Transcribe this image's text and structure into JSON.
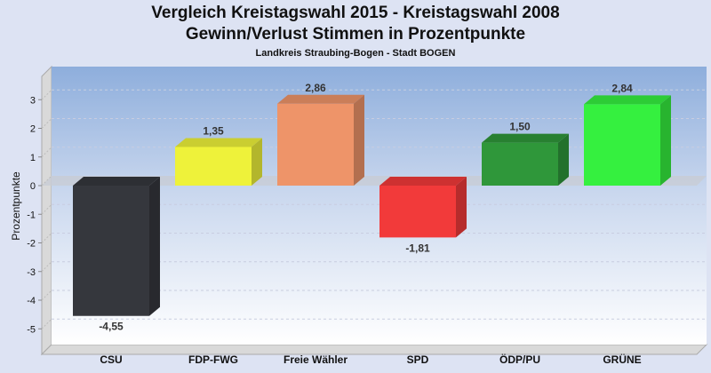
{
  "chart_data": {
    "type": "bar",
    "title": "Vergleich Kreistagswahl 2015 - Kreistagswahl 2008",
    "subtitle": "Gewinn/Verlust Stimmen in Prozentpunkte",
    "subsubtitle": "Landkreis Straubing-Bogen - Stadt BOGEN",
    "xlabel": "",
    "ylabel": "Prozentpunkte",
    "ylim": [
      -5.5,
      3.8
    ],
    "yticks": [
      3,
      2,
      1,
      0,
      -1,
      -2,
      -3,
      -4,
      -5
    ],
    "grid": true,
    "categories": [
      "CSU",
      "FDP-FWG",
      "Freie Wähler",
      "SPD",
      "ÖDP/PU",
      "GRÜNE"
    ],
    "values": [
      -4.55,
      1.35,
      2.86,
      -1.81,
      1.5,
      2.84
    ],
    "value_labels": [
      "-4,55",
      "1,35",
      "2,86",
      "-1,81",
      "1,50",
      "2,84"
    ],
    "colors": [
      "#35373d",
      "#eef23a",
      "#ee9469",
      "#f23a3a",
      "#2f973a",
      "#35f03f"
    ]
  }
}
